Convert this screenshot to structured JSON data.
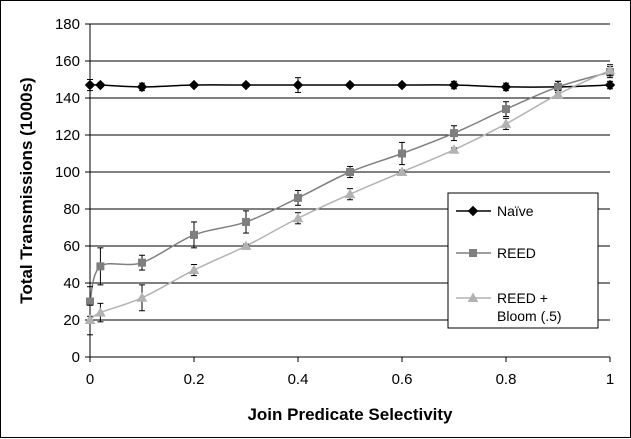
{
  "chart_data": {
    "type": "line",
    "title": "",
    "xlabel": "Join Predicate Selectivity",
    "ylabel": "Total Transmissions (1000s)",
    "xlim": [
      0,
      1
    ],
    "ylim": [
      0,
      180
    ],
    "xticks": [
      "0",
      "0.2",
      "0.4",
      "0.6",
      "0.8",
      "1"
    ],
    "yticks": [
      "0",
      "20",
      "40",
      "60",
      "80",
      "100",
      "120",
      "140",
      "160",
      "180"
    ],
    "grid": "horizontal",
    "legend_position": "right",
    "series": [
      {
        "name": "Naïve",
        "color": "#000000",
        "marker": "diamond",
        "x": [
          0,
          0.02,
          0.1,
          0.2,
          0.3,
          0.4,
          0.5,
          0.6,
          0.7,
          0.8,
          0.9,
          1.0
        ],
        "y": [
          147,
          147,
          146,
          147,
          147,
          147,
          147,
          147,
          147,
          146,
          146,
          147
        ],
        "err": [
          3,
          1,
          2,
          1,
          1,
          4,
          1,
          1,
          2,
          2,
          3,
          2
        ]
      },
      {
        "name": "REED",
        "color": "#7f7f7f",
        "marker": "square",
        "x": [
          0,
          0.02,
          0.1,
          0.2,
          0.3,
          0.4,
          0.5,
          0.6,
          0.7,
          0.8,
          0.9,
          1.0
        ],
        "y": [
          30,
          49,
          51,
          66,
          73,
          86,
          100,
          110,
          121,
          134,
          146,
          154
        ],
        "err": [
          8,
          10,
          4,
          7,
          6,
          4,
          3,
          6,
          4,
          4,
          3,
          3
        ]
      },
      {
        "name": "REED + Bloom (.5)",
        "label_lines": [
          "REED +",
          "Bloom (.5)"
        ],
        "color": "#b2b2b2",
        "marker": "triangle",
        "x": [
          0,
          0.02,
          0.1,
          0.2,
          0.3,
          0.4,
          0.5,
          0.6,
          0.7,
          0.8,
          0.9,
          1.0
        ],
        "y": [
          20,
          24,
          32,
          47,
          60,
          75,
          88,
          100,
          112,
          126,
          142,
          155
        ],
        "err": [
          8,
          5,
          7,
          3,
          1,
          3,
          3,
          1,
          1,
          3,
          2,
          3
        ]
      }
    ]
  }
}
